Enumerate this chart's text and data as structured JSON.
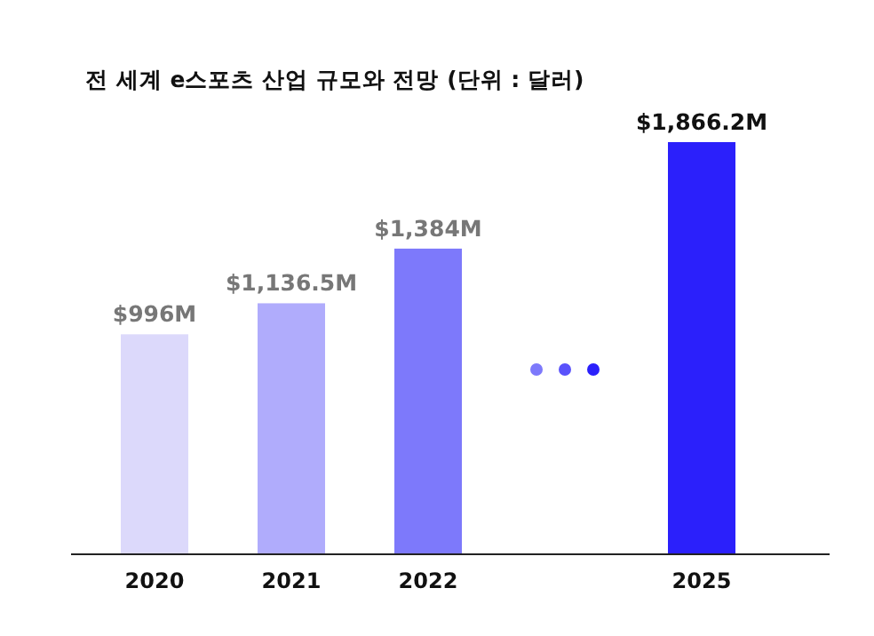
{
  "chart_data": {
    "type": "bar",
    "title": "전 세계 e스포츠 산업 규모와 전망 (단위 : 달러)",
    "categories": [
      "2020",
      "2021",
      "2022",
      null,
      "2025"
    ],
    "values": [
      996,
      1136.5,
      1384,
      null,
      1866.2
    ],
    "value_labels": [
      "$996M",
      "$1,136.5M",
      "$1,384M",
      null,
      "$1,866.2M"
    ],
    "colors": [
      "#dcd9fb",
      "#b0acfc",
      "#7d79fb",
      null,
      "#2b20fb"
    ]
  }
}
